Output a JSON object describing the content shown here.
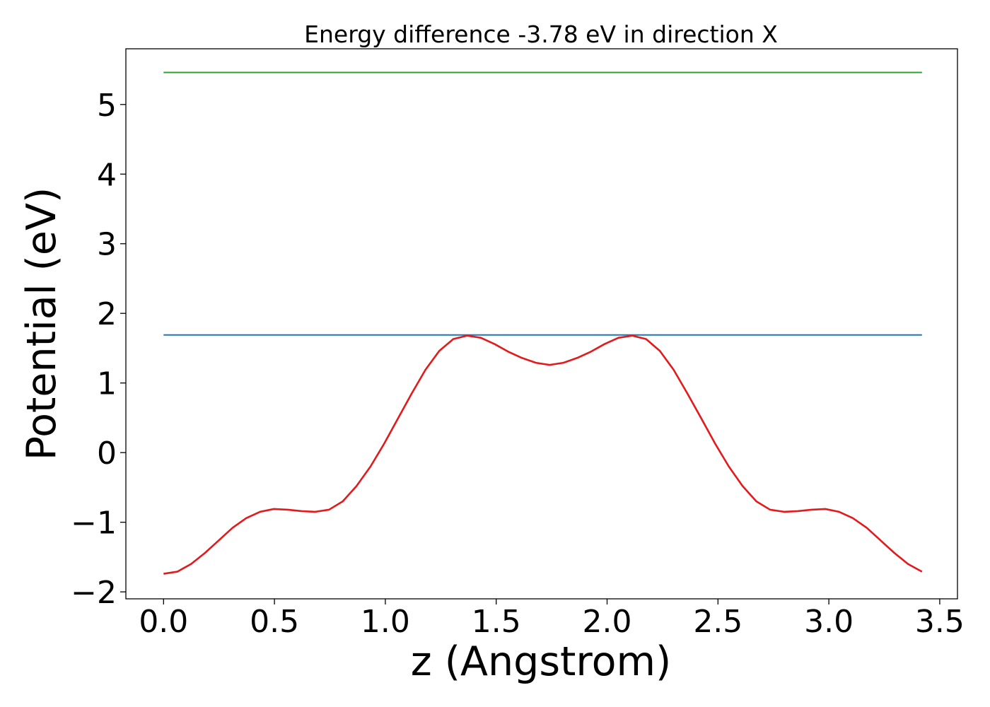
{
  "chart_data": {
    "type": "line",
    "title": "Energy difference -3.78 eV in direction X",
    "xlabel": "z (Angstrom)",
    "ylabel": "Potential (eV)",
    "xlim": [
      -0.17,
      3.58
    ],
    "ylim": [
      -2.1,
      5.8
    ],
    "xticks": [
      0.0,
      0.5,
      1.0,
      1.5,
      2.0,
      2.5,
      3.0,
      3.5
    ],
    "xtick_labels": [
      "0.0",
      "0.5",
      "1.0",
      "1.5",
      "2.0",
      "2.5",
      "3.0",
      "3.5"
    ],
    "yticks": [
      -2,
      -1,
      0,
      1,
      2,
      3,
      4,
      5
    ],
    "ytick_labels": [
      "−2",
      "−1",
      "0",
      "1",
      "2",
      "3",
      "4",
      "5"
    ],
    "grid": false,
    "legend": null,
    "series": [
      {
        "color": "#2ca02c",
        "kind": "horizontal",
        "x": [
          0.0,
          3.42
        ],
        "y": [
          5.46,
          5.46
        ]
      },
      {
        "color": "#1f77b4",
        "kind": "horizontal",
        "x": [
          0.0,
          3.42
        ],
        "y": [
          1.69,
          1.69
        ]
      },
      {
        "color": "#e31a1c",
        "kind": "curve",
        "x": [
          0.0,
          0.062,
          0.124,
          0.187,
          0.249,
          0.311,
          0.373,
          0.435,
          0.497,
          0.56,
          0.622,
          0.684,
          0.746,
          0.808,
          0.87,
          0.933,
          0.995,
          1.057,
          1.119,
          1.181,
          1.243,
          1.306,
          1.368,
          1.43,
          1.492,
          1.554,
          1.616,
          1.679,
          1.741,
          1.803,
          1.865,
          1.927,
          1.989,
          2.052,
          2.114,
          2.176,
          2.238,
          2.3,
          2.362,
          2.425,
          2.487,
          2.549,
          2.611,
          2.673,
          2.735,
          2.798,
          2.86,
          2.922,
          2.984,
          3.046,
          3.108,
          3.171,
          3.233,
          3.295,
          3.357,
          3.42
        ],
        "y": [
          -1.74,
          -1.71,
          -1.6,
          -1.44,
          -1.26,
          -1.08,
          -0.94,
          -0.85,
          -0.81,
          -0.82,
          -0.84,
          -0.85,
          -0.82,
          -0.7,
          -0.48,
          -0.2,
          0.13,
          0.49,
          0.85,
          1.19,
          1.46,
          1.63,
          1.68,
          1.65,
          1.56,
          1.45,
          1.36,
          1.29,
          1.26,
          1.29,
          1.36,
          1.45,
          1.56,
          1.65,
          1.68,
          1.63,
          1.46,
          1.19,
          0.85,
          0.49,
          0.13,
          -0.2,
          -0.48,
          -0.7,
          -0.82,
          -0.85,
          -0.84,
          -0.82,
          -0.81,
          -0.85,
          -0.94,
          -1.08,
          -1.26,
          -1.44,
          -1.6,
          -1.71
        ]
      }
    ]
  }
}
